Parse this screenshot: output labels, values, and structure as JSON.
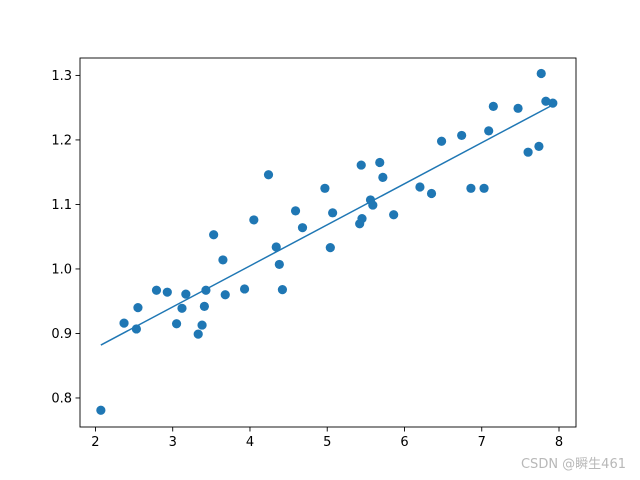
{
  "chart_data": {
    "type": "scatter",
    "title": "",
    "xlabel": "",
    "ylabel": "",
    "xlim": [
      1.8,
      8.22
    ],
    "ylim": [
      0.755,
      1.327
    ],
    "x_ticks": [
      2,
      3,
      4,
      5,
      6,
      7,
      8
    ],
    "y_ticks": [
      0.8,
      0.9,
      1.0,
      1.1,
      1.2,
      1.3
    ],
    "y_tick_labels": [
      "0.8",
      "0.9",
      "1.0",
      "1.1",
      "1.2",
      "1.3"
    ],
    "grid": false,
    "marker_color": "#1f77b4",
    "line_color": "#1f77b4",
    "points": [
      [
        2.07,
        0.781
      ],
      [
        2.37,
        0.916
      ],
      [
        2.53,
        0.907
      ],
      [
        2.55,
        0.94
      ],
      [
        2.79,
        0.967
      ],
      [
        2.93,
        0.964
      ],
      [
        3.05,
        0.915
      ],
      [
        3.12,
        0.939
      ],
      [
        3.17,
        0.961
      ],
      [
        3.33,
        0.899
      ],
      [
        3.38,
        0.913
      ],
      [
        3.41,
        0.942
      ],
      [
        3.43,
        0.967
      ],
      [
        3.53,
        1.053
      ],
      [
        3.65,
        1.014
      ],
      [
        3.68,
        0.96
      ],
      [
        3.93,
        0.969
      ],
      [
        4.05,
        1.076
      ],
      [
        4.24,
        1.146
      ],
      [
        4.34,
        1.034
      ],
      [
        4.38,
        1.007
      ],
      [
        4.42,
        0.968
      ],
      [
        4.59,
        1.09
      ],
      [
        4.68,
        1.064
      ],
      [
        4.97,
        1.125
      ],
      [
        5.04,
        1.033
      ],
      [
        5.07,
        1.087
      ],
      [
        5.42,
        1.07
      ],
      [
        5.45,
        1.078
      ],
      [
        5.44,
        1.161
      ],
      [
        5.56,
        1.107
      ],
      [
        5.59,
        1.099
      ],
      [
        5.68,
        1.165
      ],
      [
        5.72,
        1.142
      ],
      [
        5.86,
        1.084
      ],
      [
        6.2,
        1.127
      ],
      [
        6.35,
        1.117
      ],
      [
        6.48,
        1.198
      ],
      [
        6.74,
        1.207
      ],
      [
        6.86,
        1.125
      ],
      [
        7.03,
        1.125
      ],
      [
        7.09,
        1.214
      ],
      [
        7.15,
        1.252
      ],
      [
        7.47,
        1.249
      ],
      [
        7.6,
        1.181
      ],
      [
        7.74,
        1.19
      ],
      [
        7.77,
        1.303
      ],
      [
        7.83,
        1.26
      ],
      [
        7.92,
        1.257
      ]
    ],
    "fit_line": [
      [
        2.07,
        0.882
      ],
      [
        7.9,
        1.253
      ]
    ]
  },
  "watermark": "CSDN @瞬生461"
}
